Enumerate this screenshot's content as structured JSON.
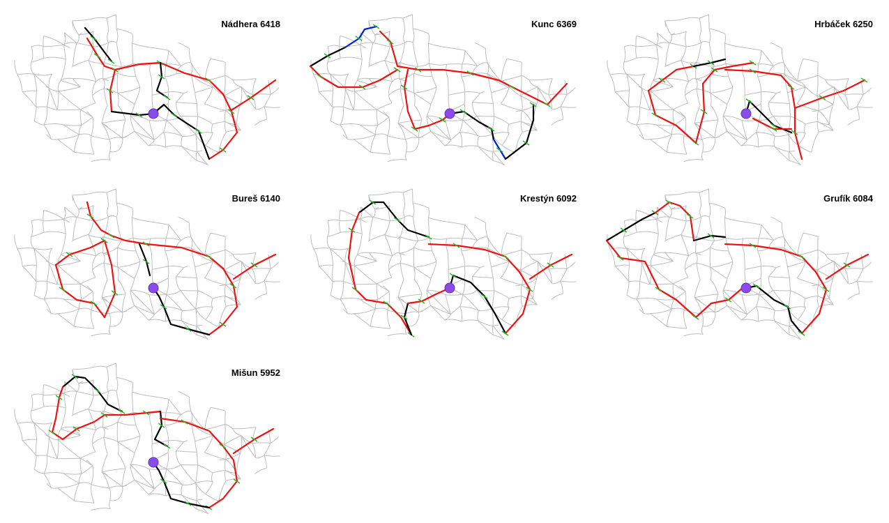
{
  "panels": [
    {
      "name": "Nádhera",
      "score": 6418
    },
    {
      "name": "Kunc",
      "score": 6369
    },
    {
      "name": "Hrbáček",
      "score": 6250
    },
    {
      "name": "Bureš",
      "score": 6140
    },
    {
      "name": "Krestýn",
      "score": 6092
    },
    {
      "name": "Grufík",
      "score": 6084
    },
    {
      "name": "Mišun",
      "score": 5952
    }
  ]
}
